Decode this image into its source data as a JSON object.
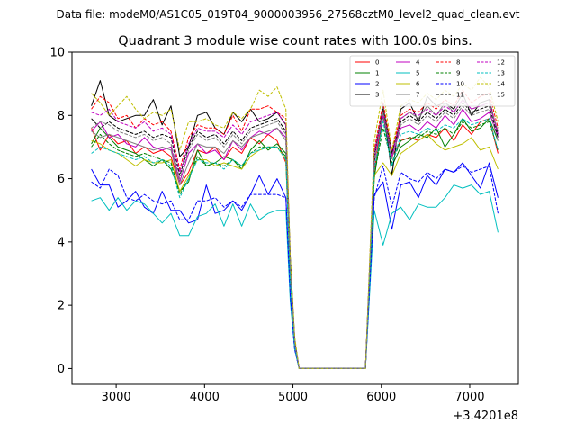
{
  "chart_data": {
    "type": "line",
    "suptitle": "Data file: modeM0/AS1C05_019T04_9000003956_27568cztM0_level2_quad_clean.evt",
    "title": "Quadrant 3 module wise count rates with 100.0s bins.",
    "xlabel": "",
    "ylabel": "",
    "x_offset_label": "+3.4201e8",
    "xlim": [
      2500,
      7550
    ],
    "ylim": [
      -0.5,
      10
    ],
    "x_ticks": [
      3000,
      4000,
      5000,
      6000,
      7000
    ],
    "y_ticks": [
      0,
      2,
      4,
      6,
      8,
      10
    ],
    "grid": false,
    "legend_position": "top-right",
    "x": [
      2720,
      2820,
      2920,
      3020,
      3120,
      3220,
      3320,
      3420,
      3520,
      3620,
      3720,
      3820,
      3920,
      4020,
      4120,
      4220,
      4320,
      4420,
      4520,
      4620,
      4720,
      4820,
      4920,
      4970,
      5020,
      5070,
      5120,
      5220,
      5320,
      5420,
      5520,
      5620,
      5720,
      5820,
      5920,
      6020,
      6120,
      6220,
      6320,
      6420,
      6520,
      6620,
      6720,
      6820,
      6920,
      7020,
      7120,
      7220,
      7320
    ],
    "series": [
      {
        "name": "0",
        "color": "#ff0000",
        "dashed": false,
        "values": [
          7.6,
          6.9,
          7.4,
          7.1,
          7.2,
          6.8,
          7.0,
          6.8,
          6.9,
          6.7,
          5.8,
          6.2,
          6.9,
          6.8,
          7.0,
          6.6,
          7.0,
          6.8,
          7.3,
          7.1,
          7.4,
          7.2,
          6.5,
          3.0,
          0.8,
          0.0,
          0.0,
          0.0,
          0.0,
          0.0,
          0.0,
          0.0,
          0.0,
          0.0,
          6.2,
          8.2,
          6.7,
          7.2,
          7.3,
          7.2,
          7.4,
          7.3,
          7.6,
          7.2,
          7.7,
          7.4,
          7.8,
          7.9,
          6.8
        ]
      },
      {
        "name": "1",
        "color": "#008000",
        "dashed": false,
        "values": [
          7.1,
          7.6,
          7.3,
          7.0,
          6.9,
          6.8,
          6.6,
          6.4,
          6.6,
          6.3,
          5.6,
          5.9,
          6.9,
          6.4,
          6.5,
          6.7,
          6.6,
          6.3,
          6.9,
          7.2,
          6.9,
          7.1,
          6.8,
          2.9,
          0.8,
          0.0,
          0.0,
          0.0,
          0.0,
          0.0,
          0.0,
          0.0,
          0.0,
          0.0,
          6.0,
          8.0,
          6.4,
          7.0,
          7.2,
          7.4,
          7.3,
          7.6,
          7.0,
          7.4,
          7.9,
          7.5,
          7.6,
          7.9,
          7.2
        ]
      },
      {
        "name": "2",
        "color": "#0000ff",
        "dashed": false,
        "values": [
          6.3,
          5.8,
          5.8,
          5.1,
          5.3,
          5.6,
          5.1,
          4.9,
          5.6,
          5.0,
          5.0,
          4.6,
          4.7,
          5.8,
          4.9,
          5.0,
          5.3,
          5.0,
          5.5,
          6.1,
          5.5,
          6.0,
          5.4,
          2.3,
          0.6,
          0.0,
          0.0,
          0.0,
          0.0,
          0.0,
          0.0,
          0.0,
          0.0,
          0.0,
          5.5,
          5.9,
          4.4,
          5.8,
          5.9,
          5.4,
          6.1,
          5.8,
          6.3,
          6.2,
          6.5,
          6.1,
          5.7,
          6.5,
          5.4
        ]
      },
      {
        "name": "3",
        "color": "#000000",
        "dashed": false,
        "values": [
          8.3,
          9.1,
          8.0,
          7.8,
          7.9,
          8.0,
          8.0,
          8.5,
          7.7,
          8.3,
          6.7,
          7.0,
          8.0,
          8.1,
          7.6,
          7.4,
          8.1,
          7.8,
          8.2,
          7.8,
          7.9,
          8.1,
          7.7,
          3.5,
          0.9,
          0.0,
          0.0,
          0.0,
          0.0,
          0.0,
          0.0,
          0.0,
          0.0,
          0.0,
          6.5,
          8.4,
          6.1,
          8.2,
          8.4,
          7.8,
          8.6,
          8.3,
          8.4,
          8.2,
          8.7,
          8.0,
          8.4,
          8.5,
          7.4
        ]
      },
      {
        "name": "4",
        "color": "#c000c0",
        "dashed": false,
        "values": [
          7.5,
          7.8,
          7.3,
          7.4,
          7.1,
          7.0,
          7.3,
          7.0,
          6.9,
          7.0,
          5.9,
          6.8,
          7.1,
          6.8,
          6.9,
          6.6,
          7.2,
          6.9,
          7.3,
          7.5,
          7.4,
          7.6,
          7.3,
          3.1,
          0.8,
          0.0,
          0.0,
          0.0,
          0.0,
          0.0,
          0.0,
          0.0,
          0.0,
          0.0,
          6.6,
          8.0,
          6.7,
          7.6,
          7.7,
          7.5,
          7.8,
          7.6,
          8.0,
          7.7,
          8.2,
          7.8,
          7.9,
          8.1,
          7.3
        ]
      },
      {
        "name": "5",
        "color": "#00bfbf",
        "dashed": false,
        "values": [
          5.3,
          5.4,
          5.0,
          5.4,
          5.0,
          5.3,
          5.2,
          4.9,
          4.6,
          4.9,
          4.2,
          4.2,
          4.8,
          4.9,
          5.2,
          4.5,
          5.2,
          4.5,
          5.2,
          4.7,
          4.9,
          5.0,
          5.0,
          2.1,
          0.6,
          0.0,
          0.0,
          0.0,
          0.0,
          0.0,
          0.0,
          0.0,
          0.0,
          0.0,
          5.0,
          3.9,
          4.9,
          5.1,
          4.7,
          5.2,
          5.1,
          5.1,
          5.4,
          5.8,
          5.7,
          5.8,
          5.5,
          5.6,
          4.3
        ]
      },
      {
        "name": "6",
        "color": "#bfbf00",
        "dashed": false,
        "values": [
          7.2,
          7.1,
          6.9,
          6.8,
          6.6,
          6.4,
          6.6,
          6.5,
          6.5,
          6.6,
          5.6,
          6.1,
          6.6,
          6.6,
          6.4,
          6.5,
          6.4,
          6.3,
          6.7,
          6.9,
          7.0,
          7.0,
          6.6,
          2.8,
          0.7,
          0.0,
          0.0,
          0.0,
          0.0,
          0.0,
          0.0,
          0.0,
          0.0,
          0.0,
          6.1,
          6.5,
          6.1,
          6.8,
          7.0,
          7.2,
          7.4,
          7.1,
          6.9,
          7.0,
          7.1,
          7.3,
          6.9,
          7.0,
          6.3
        ]
      },
      {
        "name": "7",
        "color": "#808080",
        "dashed": false,
        "values": [
          7.5,
          7.3,
          7.4,
          7.3,
          7.2,
          7.1,
          7.0,
          6.9,
          7.0,
          6.9,
          5.8,
          6.5,
          7.1,
          7.0,
          7.0,
          6.8,
          7.2,
          7.0,
          7.3,
          7.4,
          7.5,
          7.6,
          7.2,
          3.1,
          0.8,
          0.0,
          0.0,
          0.0,
          0.0,
          0.0,
          0.0,
          0.0,
          0.0,
          0.0,
          6.8,
          8.3,
          6.8,
          7.9,
          8.1,
          7.9,
          8.3,
          8.0,
          8.4,
          8.1,
          8.5,
          8.2,
          8.3,
          8.4,
          7.5
        ]
      },
      {
        "name": "8",
        "color": "#ff0000",
        "dashed": true,
        "values": [
          8.2,
          8.6,
          8.4,
          7.9,
          8.0,
          7.6,
          7.9,
          7.7,
          7.8,
          7.5,
          6.3,
          7.3,
          7.7,
          7.6,
          7.6,
          7.4,
          8.0,
          7.5,
          8.2,
          8.2,
          8.3,
          8.1,
          7.9,
          3.3,
          0.9,
          0.0,
          0.0,
          0.0,
          0.0,
          0.0,
          0.0,
          0.0,
          0.0,
          0.0,
          6.9,
          8.4,
          6.9,
          8.0,
          8.2,
          8.1,
          8.4,
          8.2,
          8.5,
          8.3,
          8.8,
          8.4,
          8.6,
          8.7,
          7.6
        ]
      },
      {
        "name": "9",
        "color": "#008000",
        "dashed": true,
        "values": [
          7.0,
          7.4,
          7.1,
          6.9,
          6.8,
          6.7,
          6.8,
          6.7,
          6.6,
          6.5,
          5.5,
          6.0,
          6.7,
          6.4,
          6.5,
          6.4,
          6.6,
          6.4,
          6.8,
          7.0,
          7.0,
          7.0,
          6.7,
          2.9,
          0.8,
          0.0,
          0.0,
          0.0,
          0.0,
          0.0,
          0.0,
          0.0,
          0.0,
          0.0,
          6.1,
          7.6,
          6.5,
          7.2,
          7.3,
          7.3,
          7.5,
          7.4,
          7.6,
          7.4,
          7.8,
          7.6,
          7.7,
          7.8,
          6.9
        ]
      },
      {
        "name": "10",
        "color": "#0000ff",
        "dashed": true,
        "values": [
          5.9,
          5.7,
          6.3,
          6.1,
          5.4,
          5.3,
          5.5,
          5.3,
          5.2,
          5.3,
          4.7,
          4.7,
          5.3,
          5.3,
          5.4,
          5.1,
          5.3,
          5.1,
          5.5,
          5.5,
          5.5,
          5.5,
          5.4,
          2.3,
          0.6,
          0.0,
          0.0,
          0.0,
          0.0,
          0.0,
          0.0,
          0.0,
          0.0,
          0.0,
          5.4,
          6.4,
          5.1,
          6.2,
          6.0,
          5.9,
          6.2,
          6.0,
          6.3,
          6.2,
          6.4,
          6.2,
          6.3,
          6.4,
          4.9
        ]
      },
      {
        "name": "11",
        "color": "#000000",
        "dashed": true,
        "values": [
          7.9,
          7.6,
          7.8,
          7.6,
          7.5,
          7.4,
          7.5,
          7.3,
          7.4,
          7.3,
          6.1,
          7.0,
          7.5,
          7.3,
          7.4,
          7.1,
          7.5,
          7.2,
          7.6,
          7.7,
          7.8,
          7.9,
          7.5,
          3.2,
          0.9,
          0.0,
          0.0,
          0.0,
          0.0,
          0.0,
          0.0,
          0.0,
          0.0,
          0.0,
          6.7,
          8.2,
          6.8,
          7.8,
          8.0,
          7.8,
          8.1,
          7.9,
          8.2,
          8.0,
          8.4,
          8.1,
          8.2,
          8.3,
          7.3
        ]
      },
      {
        "name": "12",
        "color": "#c000c0",
        "dashed": true,
        "values": [
          8.1,
          8.0,
          8.2,
          7.8,
          7.7,
          7.6,
          7.8,
          7.5,
          7.6,
          7.4,
          6.2,
          7.1,
          7.6,
          7.5,
          7.5,
          7.3,
          7.7,
          7.4,
          7.8,
          7.9,
          8.0,
          8.1,
          7.7,
          3.3,
          0.9,
          0.0,
          0.0,
          0.0,
          0.0,
          0.0,
          0.0,
          0.0,
          0.0,
          0.0,
          6.8,
          8.1,
          6.7,
          7.9,
          8.1,
          8.0,
          8.2,
          8.0,
          8.3,
          8.1,
          8.5,
          8.2,
          8.3,
          8.4,
          7.4
        ]
      },
      {
        "name": "13",
        "color": "#00bfbf",
        "dashed": true,
        "values": [
          6.8,
          7.0,
          6.9,
          6.8,
          6.7,
          6.6,
          6.7,
          6.5,
          6.6,
          6.4,
          5.4,
          6.0,
          6.6,
          6.5,
          6.5,
          6.3,
          6.6,
          6.4,
          6.8,
          6.9,
          7.0,
          7.0,
          6.6,
          2.8,
          0.7,
          0.0,
          0.0,
          0.0,
          0.0,
          0.0,
          0.0,
          0.0,
          0.0,
          0.0,
          6.3,
          7.8,
          6.4,
          7.4,
          7.5,
          7.4,
          7.6,
          7.5,
          7.7,
          7.6,
          7.9,
          7.7,
          7.8,
          7.9,
          6.9
        ]
      },
      {
        "name": "14",
        "color": "#bfbf00",
        "dashed": true,
        "values": [
          8.7,
          8.4,
          8.0,
          8.3,
          8.6,
          8.2,
          7.9,
          8.1,
          8.0,
          8.2,
          6.9,
          7.8,
          7.8,
          7.9,
          7.7,
          7.6,
          8.1,
          7.9,
          8.2,
          8.8,
          8.6,
          8.9,
          8.2,
          3.5,
          1.0,
          0.0,
          0.0,
          0.0,
          0.0,
          0.0,
          0.0,
          0.0,
          0.0,
          0.0,
          7.2,
          8.8,
          6.9,
          8.3,
          8.5,
          8.4,
          8.7,
          8.5,
          8.8,
          8.6,
          9.0,
          8.8,
          9.2,
          8.9,
          7.8
        ]
      },
      {
        "name": "15",
        "color": "#808080",
        "dashed": true,
        "values": [
          7.6,
          7.8,
          7.7,
          7.5,
          7.4,
          7.3,
          7.4,
          7.2,
          7.3,
          7.1,
          6.0,
          6.9,
          7.4,
          7.2,
          7.3,
          7.0,
          7.4,
          7.1,
          7.5,
          7.6,
          7.7,
          7.8,
          7.4,
          3.2,
          0.8,
          0.0,
          0.0,
          0.0,
          0.0,
          0.0,
          0.0,
          0.0,
          0.0,
          0.0,
          6.6,
          8.1,
          6.6,
          7.7,
          7.9,
          7.7,
          8.0,
          7.8,
          8.1,
          7.9,
          8.3,
          8.0,
          8.1,
          8.2,
          7.2
        ]
      }
    ]
  }
}
